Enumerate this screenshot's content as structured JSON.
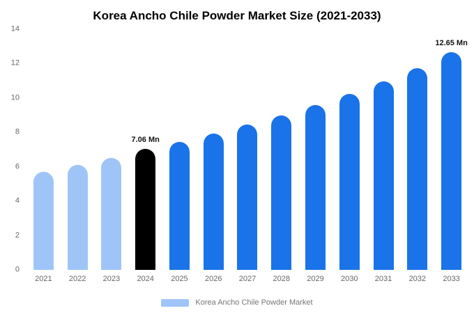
{
  "title": "Korea Ancho Chile Powder Market Size (2021-2033)",
  "chart_data": {
    "type": "bar",
    "title": "Korea Ancho Chile Powder Market Size (2021-2033)",
    "categories": [
      "2021",
      "2022",
      "2023",
      "2024",
      "2025",
      "2026",
      "2027",
      "2028",
      "2029",
      "2030",
      "2031",
      "2032",
      "2033"
    ],
    "values": [
      5.7,
      6.1,
      6.5,
      7.06,
      7.45,
      7.95,
      8.45,
      9.0,
      9.6,
      10.25,
      10.95,
      11.75,
      12.65
    ],
    "bar_colors": [
      "#9FC5F8",
      "#9FC5F8",
      "#9FC5F8",
      "#000000",
      "#1A73E8",
      "#1A73E8",
      "#1A73E8",
      "#1A73E8",
      "#1A73E8",
      "#1A73E8",
      "#1A73E8",
      "#1A73E8",
      "#1A73E8"
    ],
    "annotations": [
      {
        "index": 3,
        "text": "7.06 Mn"
      },
      {
        "index": 12,
        "text": "12.65 Mn"
      }
    ],
    "xlabel": "",
    "ylabel": "",
    "ylim": [
      0,
      14
    ],
    "yticks": [
      0,
      2,
      4,
      6,
      8,
      10,
      12,
      14
    ],
    "grid": false,
    "legend_position": "bottom"
  },
  "legend": {
    "label": "Korea Ancho Chile Powder Market",
    "swatch_color": "#9FC5F8"
  },
  "colors": {
    "historical_bar": "#9FC5F8",
    "current_bar": "#000000",
    "forecast_bar": "#1A73E8",
    "axis_text": "#666666",
    "legend_text": "#757575"
  }
}
